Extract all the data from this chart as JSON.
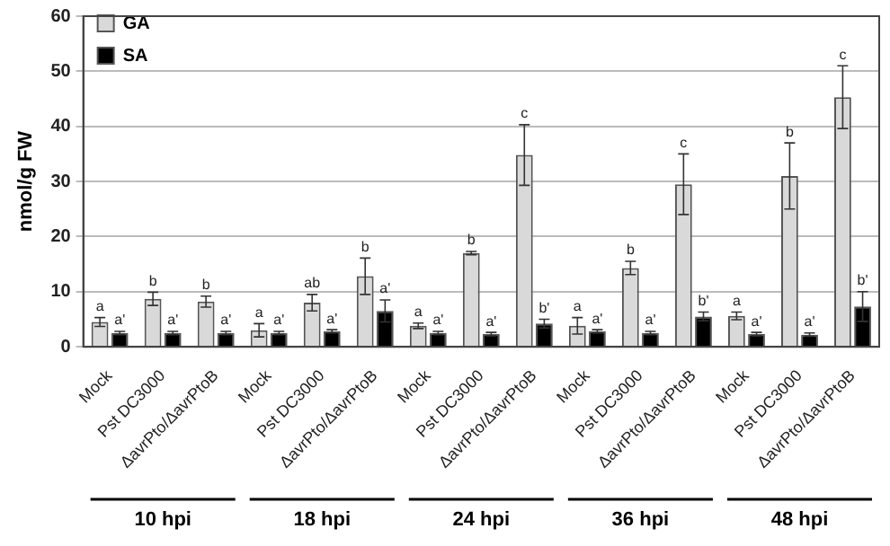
{
  "chart_data": {
    "type": "bar",
    "ylabel": "nmol/g FW",
    "categories": [
      "Mock",
      "Pst DC3000",
      "ΔavrPto/ΔavrPtoB",
      "Mock",
      "Pst DC3000",
      "ΔavrPto/ΔavrPtoB",
      "Mock",
      "Pst DC3000",
      "ΔavrPto/ΔavrPtoB",
      "Mock",
      "Pst DC3000",
      "ΔavrPto/ΔavrPtoB",
      "Mock",
      "Pst DC3000",
      "ΔavrPto/ΔavrPtoB"
    ],
    "series": [
      {
        "name": "GA",
        "color": "#d9d9d9",
        "values": [
          4.5,
          8.7,
          8.2,
          3.0,
          8.0,
          12.8,
          3.8,
          17.0,
          34.8,
          3.8,
          14.3,
          29.5,
          5.6,
          31.0,
          45.3
        ],
        "errors": [
          0.8,
          1.2,
          1.0,
          1.2,
          1.5,
          3.3,
          0.5,
          0.3,
          5.5,
          1.5,
          1.2,
          5.5,
          0.7,
          6.0,
          5.7
        ],
        "value_labels": [
          "a",
          "b",
          "b",
          "a",
          "ab",
          "b",
          "a",
          "b",
          "c",
          "a",
          "b",
          "c",
          "a",
          "b",
          "c"
        ]
      },
      {
        "name": "SA",
        "color": "#000000",
        "values": [
          2.5,
          2.5,
          2.5,
          2.5,
          2.8,
          6.5,
          2.5,
          2.3,
          4.2,
          2.8,
          2.5,
          5.5,
          2.3,
          2.2,
          7.3
        ],
        "errors": [
          0.3,
          0.3,
          0.3,
          0.3,
          0.3,
          2.0,
          0.3,
          0.3,
          0.8,
          0.3,
          0.3,
          0.8,
          0.3,
          0.3,
          2.7
        ],
        "value_labels": [
          "a'",
          "a'",
          "a'",
          "a'",
          "a'",
          "a'",
          "a'",
          "a'",
          "b'",
          "a'",
          "a'",
          "b'",
          "a'",
          "a'",
          "b'"
        ]
      }
    ],
    "annotations": [
      "10 hpi",
      "18 hpi",
      "24 hpi",
      "36 hpi",
      "48 hpi"
    ],
    "ylim": [
      0,
      60
    ],
    "yticks": [
      0,
      10,
      20,
      30,
      40,
      50,
      60
    ],
    "grid": "y",
    "legend": "top left"
  }
}
